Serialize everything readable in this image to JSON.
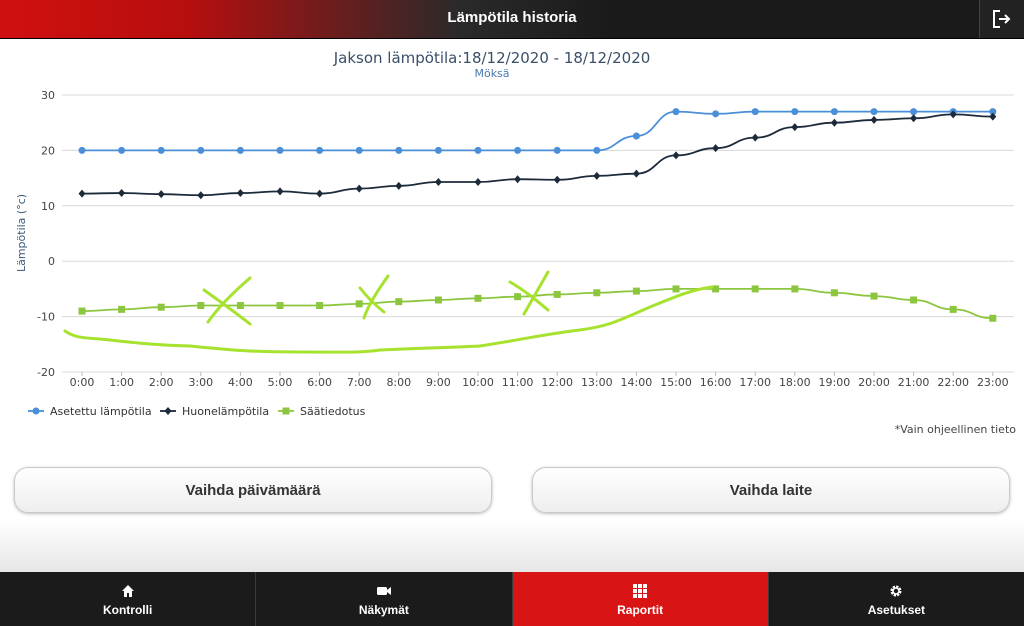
{
  "header": {
    "title": "Lämpötila historia",
    "exit_icon": "logout-icon"
  },
  "chart_data": {
    "type": "line",
    "title": "Jakson lämpötila:18/12/2020 - 18/12/2020",
    "subtitle": "Möksä",
    "xlabel": "",
    "ylabel": "Lämpötila (°c)",
    "ylim": [
      -20,
      30
    ],
    "yticks": [
      30,
      20,
      10,
      0,
      -10,
      -20
    ],
    "grid": true,
    "legend_position": "bottom-left",
    "categories": [
      "0:00",
      "1:00",
      "2:00",
      "3:00",
      "4:00",
      "5:00",
      "6:00",
      "7:00",
      "8:00",
      "9:00",
      "10:00",
      "11:00",
      "12:00",
      "13:00",
      "14:00",
      "15:00",
      "16:00",
      "17:00",
      "18:00",
      "19:00",
      "20:00",
      "21:00",
      "22:00",
      "23:00"
    ],
    "series": [
      {
        "name": "Asetettu lämpötila",
        "color": "#4a8fd8",
        "marker": "circle",
        "values": [
          20,
          20,
          20,
          20,
          20,
          20,
          20,
          20,
          20,
          20,
          20,
          20,
          20,
          20,
          22.6,
          27,
          26.6,
          27,
          27,
          27,
          27,
          27,
          27,
          27
        ]
      },
      {
        "name": "Huonelämpötila",
        "color": "#1c2a3a",
        "marker": "diamond",
        "values": [
          12.2,
          12.3,
          12.1,
          11.9,
          12.3,
          12.6,
          12.2,
          13.1,
          13.6,
          14.3,
          14.3,
          14.8,
          14.7,
          15.4,
          15.8,
          19.1,
          20.4,
          22.3,
          24.2,
          25.0,
          25.5,
          25.8,
          26.5,
          26.1
        ]
      },
      {
        "name": "Säätiedotus",
        "color": "#8cc63f",
        "marker": "square",
        "values": [
          -9,
          -8.7,
          -8.3,
          -8,
          -8,
          -8,
          -8,
          -7.7,
          -7.3,
          -7,
          -6.7,
          -6.4,
          -6,
          -5.7,
          -5.4,
          -5,
          -5,
          -5,
          -5,
          -5.7,
          -6.3,
          -7,
          -8.7,
          -10.3
        ]
      }
    ],
    "note": "*Vain ohjeellinen tieto"
  },
  "buttons": {
    "change_date": "Vaihda päivämäärä",
    "change_device": "Vaihda laite"
  },
  "nav": [
    {
      "label": "Kontrolli",
      "icon": "home-icon",
      "active": false
    },
    {
      "label": "Näkymät",
      "icon": "camera-icon",
      "active": false
    },
    {
      "label": "Raportit",
      "icon": "grid-icon",
      "active": true
    },
    {
      "label": "Asetukset",
      "icon": "gear-icon",
      "active": false
    }
  ]
}
